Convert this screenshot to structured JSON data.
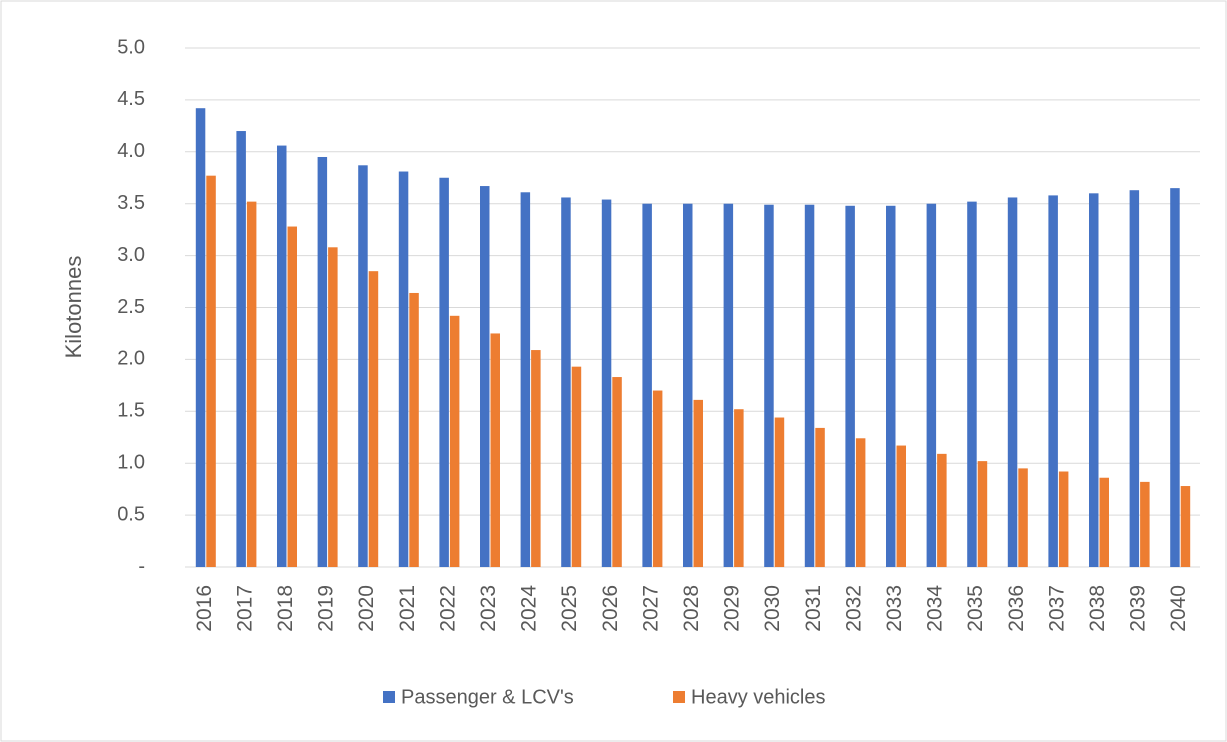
{
  "chart_data": {
    "type": "bar",
    "y_label": "Kilotonnes",
    "categories": [
      "2016",
      "2017",
      "2018",
      "2019",
      "2020",
      "2021",
      "2022",
      "2023",
      "2024",
      "2025",
      "2026",
      "2027",
      "2028",
      "2029",
      "2030",
      "2031",
      "2032",
      "2033",
      "2034",
      "2035",
      "2036",
      "2037",
      "2038",
      "2039",
      "2040"
    ],
    "series": [
      {
        "name": "Passenger & LCV's",
        "color": "#4472c4",
        "values": [
          4.42,
          4.2,
          4.06,
          3.95,
          3.87,
          3.81,
          3.75,
          3.67,
          3.61,
          3.56,
          3.54,
          3.5,
          3.5,
          3.5,
          3.49,
          3.49,
          3.48,
          3.48,
          3.5,
          3.52,
          3.56,
          3.58,
          3.6,
          3.63,
          3.65
        ]
      },
      {
        "name": "Heavy vehicles",
        "color": "#ed7d31",
        "values": [
          3.77,
          3.52,
          3.28,
          3.08,
          2.85,
          2.64,
          2.42,
          2.25,
          2.09,
          1.93,
          1.83,
          1.7,
          1.61,
          1.52,
          1.44,
          1.34,
          1.24,
          1.17,
          1.09,
          1.02,
          0.95,
          0.92,
          0.86,
          0.82,
          0.78
        ]
      }
    ],
    "ylim": [
      0,
      5
    ],
    "yticks": [
      {
        "value": 0,
        "label": "-"
      },
      0.5,
      {
        "value": 1,
        "label": "1.0"
      },
      1.5,
      {
        "value": 2,
        "label": "2.0"
      },
      2.5,
      {
        "value": 3,
        "label": "3.0"
      },
      3.5,
      {
        "value": 4,
        "label": "4.0"
      },
      4.5,
      {
        "value": 5,
        "label": "5.0"
      }
    ],
    "grid": true,
    "legend": "bottom"
  }
}
